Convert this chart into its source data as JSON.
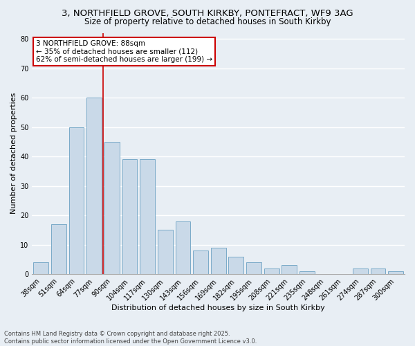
{
  "title1": "3, NORTHFIELD GROVE, SOUTH KIRKBY, PONTEFRACT, WF9 3AG",
  "title2": "Size of property relative to detached houses in South Kirkby",
  "xlabel": "Distribution of detached houses by size in South Kirkby",
  "ylabel": "Number of detached properties",
  "categories": [
    "38sqm",
    "51sqm",
    "64sqm",
    "77sqm",
    "90sqm",
    "104sqm",
    "117sqm",
    "130sqm",
    "143sqm",
    "156sqm",
    "169sqm",
    "182sqm",
    "195sqm",
    "208sqm",
    "221sqm",
    "235sqm",
    "248sqm",
    "261sqm",
    "274sqm",
    "287sqm",
    "300sqm"
  ],
  "values": [
    4,
    17,
    50,
    60,
    45,
    39,
    39,
    15,
    18,
    8,
    9,
    6,
    4,
    2,
    3,
    1,
    0,
    0,
    2,
    2,
    1
  ],
  "bar_color": "#c9d9e8",
  "bar_edge_color": "#7aaac8",
  "background_color": "#e8eef4",
  "grid_color": "#ffffff",
  "vline_color": "#cc0000",
  "annotation_title": "3 NORTHFIELD GROVE: 88sqm",
  "annotation_line1": "← 35% of detached houses are smaller (112)",
  "annotation_line2": "62% of semi-detached houses are larger (199) →",
  "annotation_box_color": "#ffffff",
  "annotation_box_edge": "#cc0000",
  "ylim": [
    0,
    82
  ],
  "yticks": [
    0,
    10,
    20,
    30,
    40,
    50,
    60,
    70,
    80
  ],
  "footnote1": "Contains HM Land Registry data © Crown copyright and database right 2025.",
  "footnote2": "Contains public sector information licensed under the Open Government Licence v3.0.",
  "title1_fontsize": 9.5,
  "title2_fontsize": 8.5,
  "axis_label_fontsize": 8,
  "tick_fontsize": 7,
  "annotation_fontsize": 7.5,
  "footnote_fontsize": 6
}
